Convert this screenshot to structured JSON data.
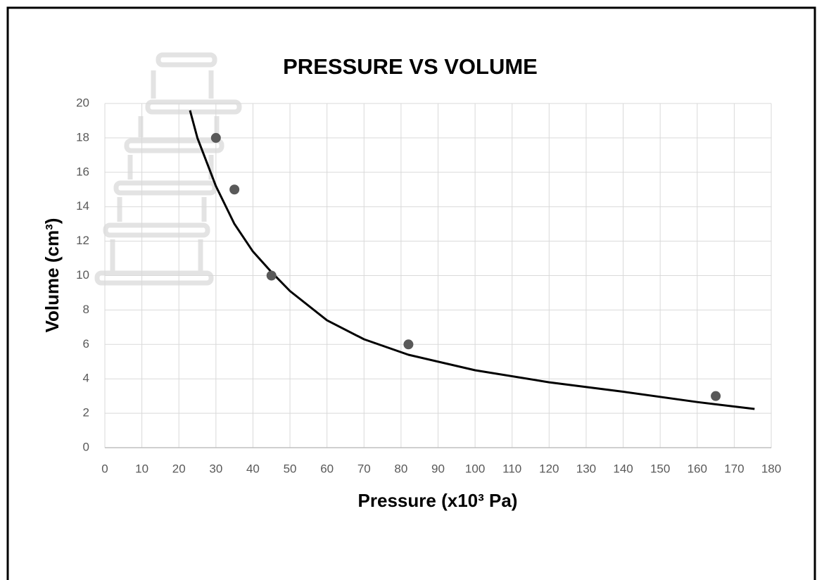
{
  "chart_data": {
    "type": "scatter",
    "title": "PRESSURE VS VOLUME",
    "x_label": "Pressure (x10³ Pa)",
    "y_label": "Volume (cm³)",
    "x": [
      30,
      35,
      45,
      82,
      165
    ],
    "values": [
      18,
      15,
      10,
      6,
      3
    ],
    "color": "#595959",
    "trendline": {
      "color": "#000000",
      "x": [
        23,
        25,
        30,
        35,
        40,
        45,
        50,
        60,
        70,
        82,
        100,
        120,
        140,
        160,
        175.5
      ],
      "values": [
        19.6,
        18.0,
        15.2,
        13.0,
        11.4,
        10.2,
        9.1,
        7.4,
        6.3,
        5.4,
        4.5,
        3.8,
        3.25,
        2.65,
        2.25
      ]
    },
    "xlim": [
      0,
      180
    ],
    "xticks": [
      0,
      10,
      20,
      30,
      40,
      50,
      60,
      70,
      80,
      90,
      100,
      110,
      120,
      130,
      140,
      150,
      160,
      170,
      180
    ],
    "ylim": [
      0,
      20
    ],
    "yticks": [
      0,
      2,
      4,
      6,
      8,
      10,
      12,
      14,
      16,
      18,
      20
    ],
    "grid": true
  }
}
